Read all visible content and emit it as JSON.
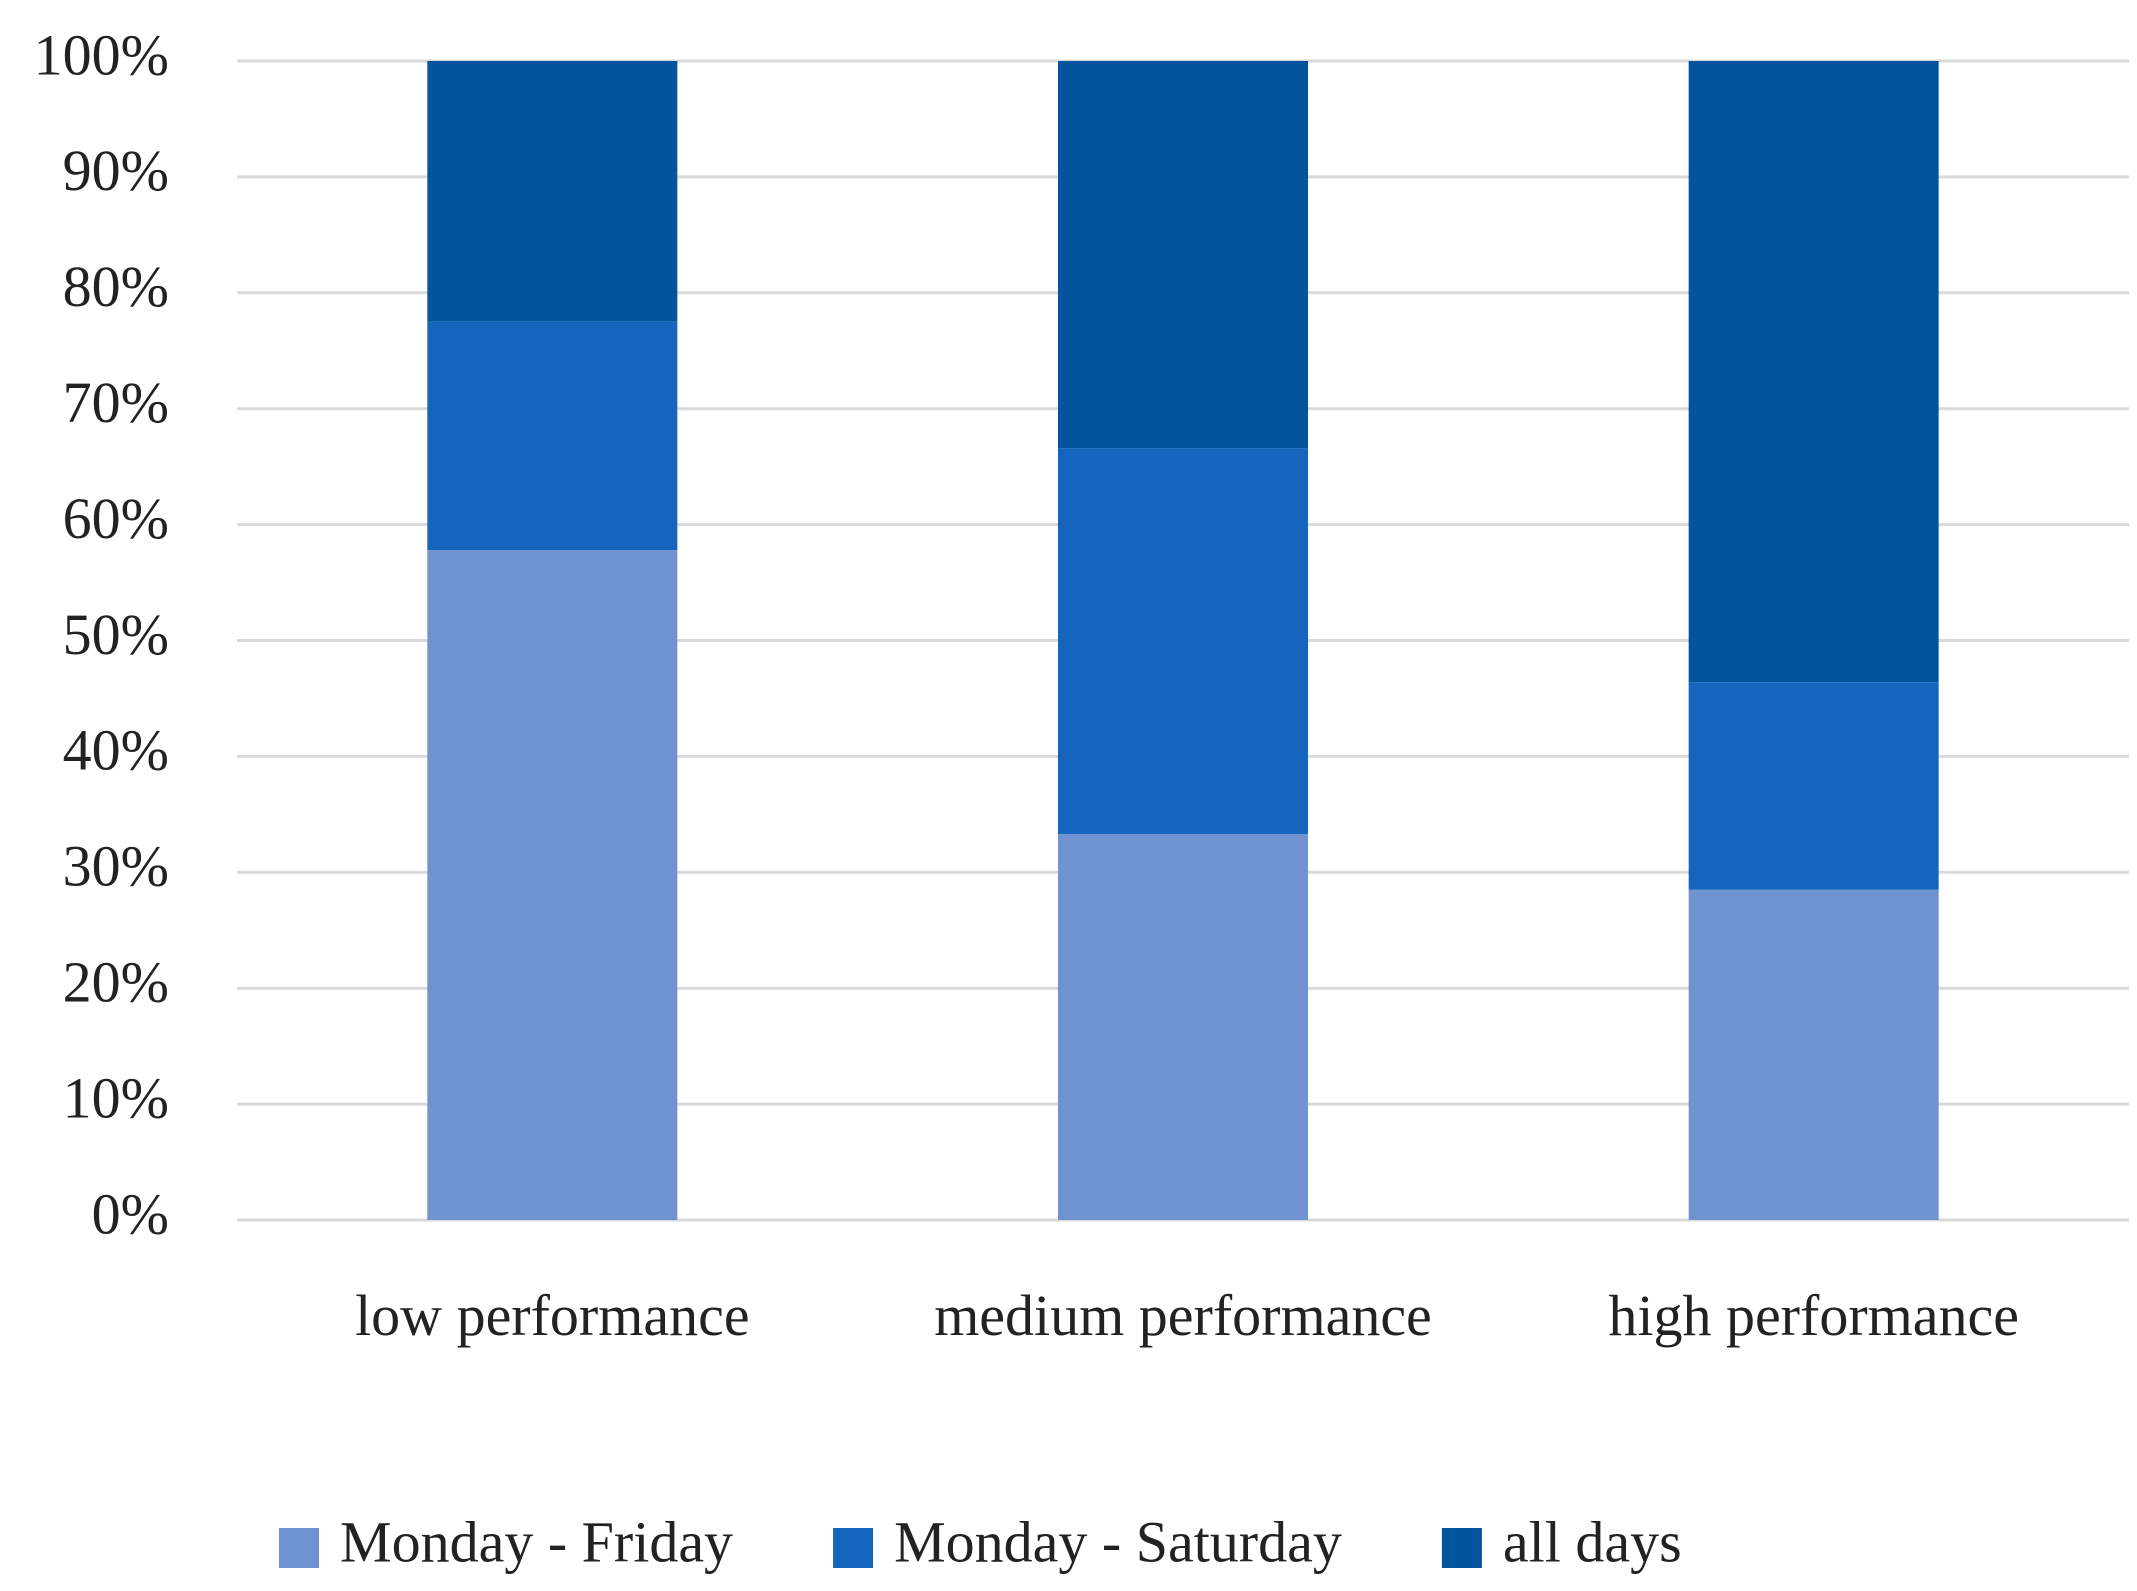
{
  "chart_data": {
    "type": "stacked_bar",
    "categories": [
      "low performance",
      "medium performance",
      "high performance"
    ],
    "series": [
      {
        "name": "Monday - Friday",
        "color": "#7092d0",
        "values": [
          57.8,
          33.3,
          28.5
        ]
      },
      {
        "name": "Monday - Saturday",
        "color": "#1565be",
        "values": [
          19.7,
          33.3,
          17.9
        ]
      },
      {
        "name": "all days",
        "color": "#02559c",
        "values": [
          22.5,
          33.4,
          53.6
        ]
      }
    ],
    "ylim": [
      0,
      100
    ],
    "yticks": [
      {
        "value": 0,
        "label": "0%"
      },
      {
        "value": 10,
        "label": "10%"
      },
      {
        "value": 20,
        "label": "20%"
      },
      {
        "value": 30,
        "label": "30%"
      },
      {
        "value": 40,
        "label": "40%"
      },
      {
        "value": 50,
        "label": "50%"
      },
      {
        "value": 60,
        "label": "60%"
      },
      {
        "value": 70,
        "label": "70%"
      },
      {
        "value": 80,
        "label": "80%"
      },
      {
        "value": 90,
        "label": "90%"
      },
      {
        "value": 100,
        "label": "100%"
      }
    ],
    "grid": true,
    "legend": "bottom"
  }
}
